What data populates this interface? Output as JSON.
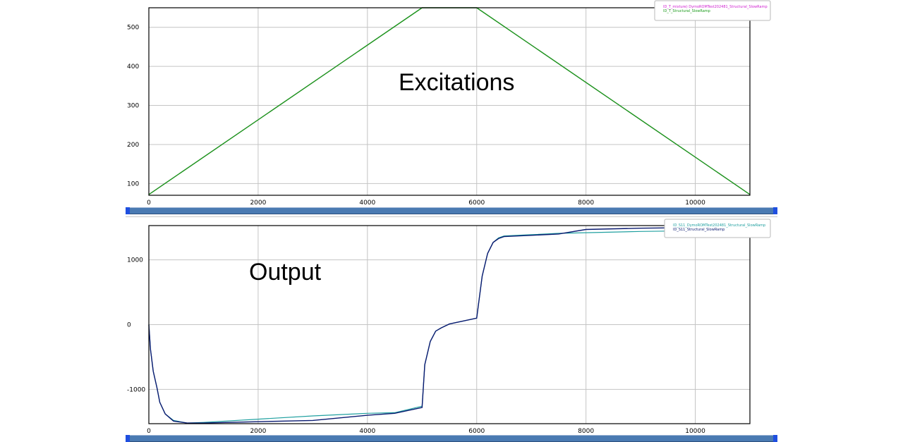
{
  "chart_data": [
    {
      "type": "line",
      "title": "Excitations",
      "xlim": [
        0,
        11000
      ],
      "ylim": [
        70,
        550
      ],
      "xticks": [
        "0",
        "2000",
        "4000",
        "6000",
        "8000",
        "10000"
      ],
      "yticks": [
        "100",
        "200",
        "300",
        "400",
        "500"
      ],
      "grid": true,
      "legend_position": "top-right",
      "series": [
        {
          "name": "ID_T_mixture) DymoROMTest202481_Structural_SlowRamp",
          "color": "#d020d0",
          "x": [
            0,
            5000,
            6000,
            11000
          ],
          "y": [
            72,
            550,
            550,
            72
          ]
        },
        {
          "name": "ID_T_Structural_SlowRamp",
          "color": "#1a9a1a",
          "x": [
            0,
            5000,
            6000,
            11000
          ],
          "y": [
            72,
            550,
            550,
            72
          ]
        }
      ]
    },
    {
      "type": "line",
      "title": "Output",
      "xlim": [
        0,
        11000
      ],
      "ylim": [
        -1530,
        1530
      ],
      "xticks": [
        "0",
        "2000",
        "4000",
        "6000",
        "8000",
        "10000"
      ],
      "yticks": [
        "1000",
        "0",
        "-1000"
      ],
      "grid": true,
      "legend_position": "top-right",
      "series": [
        {
          "name": "ID_S11_DymoROMTest202481_Structural_SlowRamp",
          "color": "#20a0a0",
          "x": [
            0,
            30,
            80,
            150,
            200,
            300,
            450,
            700,
            1000,
            2000,
            3000,
            4000,
            4500,
            5000,
            5050,
            5150,
            5250,
            5350,
            5500,
            6000,
            6100,
            6200,
            6300,
            6400,
            6500,
            7000,
            7500,
            8000,
            9000,
            10000,
            11000
          ],
          "y": [
            0,
            -380,
            -720,
            -980,
            -1200,
            -1380,
            -1480,
            -1520,
            -1510,
            -1460,
            -1410,
            -1370,
            -1360,
            -1260,
            -620,
            -260,
            -100,
            -50,
            10,
            100,
            750,
            1100,
            1270,
            1340,
            1370,
            1390,
            1410,
            1420,
            1440,
            1450,
            1470
          ]
        },
        {
          "name": "ID_S11_Structural_SlowRamp",
          "color": "#0a1a70",
          "x": [
            0,
            30,
            80,
            150,
            200,
            300,
            450,
            700,
            1000,
            2000,
            3000,
            4000,
            4500,
            5000,
            5050,
            5150,
            5250,
            5350,
            5500,
            6000,
            6100,
            6200,
            6300,
            6400,
            6500,
            7000,
            7500,
            8000,
            9000,
            10000,
            11000
          ],
          "y": [
            0,
            -380,
            -720,
            -980,
            -1200,
            -1380,
            -1490,
            -1520,
            -1520,
            -1500,
            -1480,
            -1400,
            -1370,
            -1280,
            -620,
            -260,
            -100,
            -50,
            10,
            100,
            750,
            1100,
            1270,
            1330,
            1360,
            1380,
            1400,
            1470,
            1490,
            1500,
            1520
          ]
        }
      ]
    }
  ]
}
